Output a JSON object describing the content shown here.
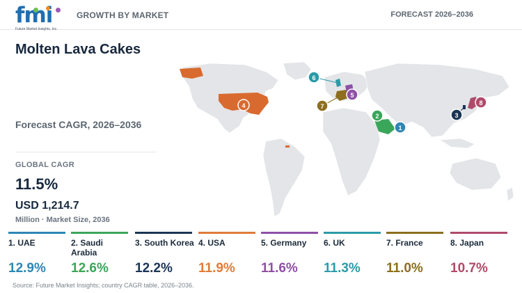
{
  "header": {
    "logo_text": "fmi",
    "logo_subtitle": "Future Market Insights, Inc.",
    "left_label": "GROWTH BY MARKET",
    "right_label": "FORECAST 2026–2036"
  },
  "title": "Molten Lava Cakes",
  "cagr_heading": "Forecast CAGR, 2026–2036",
  "global": {
    "label": "GLOBAL CAGR",
    "value": "11.5%",
    "market_size": "USD 1,214.7",
    "market_size_label": "Million · Market Size, 2036"
  },
  "colors": {
    "UAE": "#2e86b5",
    "Saudi Arabia": "#3aa65a",
    "South Korea": "#1b3555",
    "USA": "#e07b39",
    "Germany": "#8e4fa6",
    "UK": "#2a9ba8",
    "France": "#8d6e1e",
    "Japan": "#b04a6a"
  },
  "chart_data": {
    "type": "bar",
    "title": "Molten Lava Cakes",
    "subtitle": "Forecast CAGR, 2026–2036",
    "unit": "%",
    "categories": [
      "UAE",
      "Saudi Arabia",
      "South Korea",
      "USA",
      "Germany",
      "UK",
      "France",
      "Japan"
    ],
    "values": [
      12.9,
      12.6,
      12.2,
      11.9,
      11.6,
      11.3,
      11.0,
      10.7
    ],
    "global_cagr": 11.5,
    "market_size_2036_usd_million": 1214.7
  },
  "cards": [
    {
      "name": "1. UAE",
      "value": "12.9%"
    },
    {
      "name": "2. Saudi Arabia",
      "value": "12.6%"
    },
    {
      "name": "3. South Korea",
      "value": "12.2%"
    },
    {
      "name": "4. USA",
      "value": "11.9%"
    },
    {
      "name": "5. Germany",
      "value": "11.6%"
    },
    {
      "name": "6. UK",
      "value": "11.3%"
    },
    {
      "name": "7. France",
      "value": "11.0%"
    },
    {
      "name": "8. Japan",
      "value": "10.7%"
    }
  ],
  "markers": [
    "1",
    "2",
    "3",
    "4",
    "5",
    "6",
    "7",
    "8"
  ],
  "source": "Source: Future Market Insights; country CAGR table, 2026–2036."
}
